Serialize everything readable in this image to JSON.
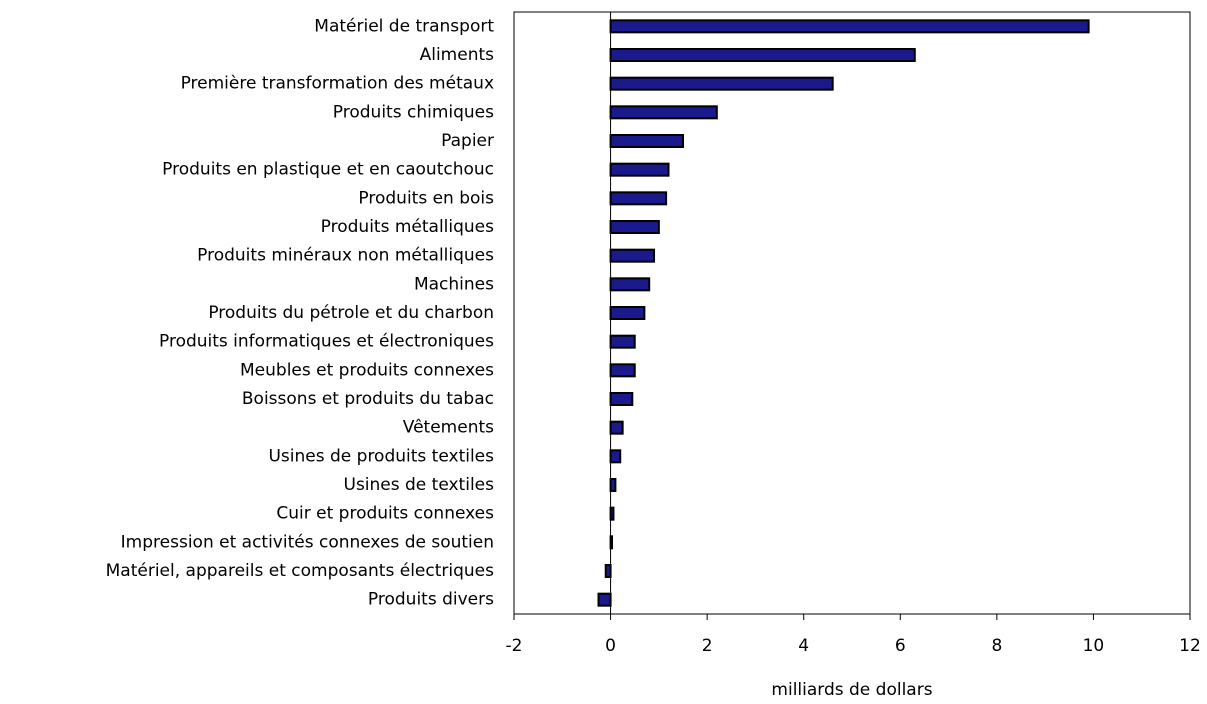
{
  "chart_data": {
    "type": "bar",
    "orientation": "horizontal",
    "xlabel": "milliards de dollars",
    "categories": [
      "Matériel de transport",
      "Aliments",
      "Première transformation des métaux",
      "Produits chimiques",
      "Papier",
      "Produits en plastique et en caoutchouc",
      "Produits en bois",
      "Produits métalliques",
      "Produits minéraux non métalliques",
      "Machines",
      "Produits du pétrole et du charbon",
      "Produits informatiques et électroniques",
      "Meubles et produits connexes",
      "Boissons et produits du tabac",
      "Vêtements",
      "Usines de produits textiles",
      "Usines de textiles",
      "Cuir et produits connexes",
      "Impression et activités connexes de soutien",
      "Matériel, appareils et composants électriques",
      "Produits divers"
    ],
    "values": [
      9.9,
      6.3,
      4.6,
      2.2,
      1.5,
      1.2,
      1.15,
      1.0,
      0.9,
      0.8,
      0.7,
      0.5,
      0.5,
      0.45,
      0.25,
      0.2,
      0.1,
      0.06,
      0.03,
      -0.1,
      -0.25
    ],
    "color": "#1a1a8c",
    "xlim": [
      -2,
      12
    ],
    "xticks": [
      -2,
      0,
      2,
      4,
      6,
      8,
      10,
      12
    ]
  }
}
